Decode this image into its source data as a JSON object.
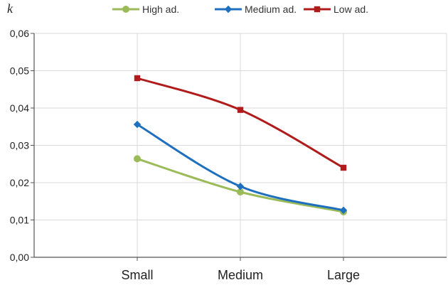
{
  "chart_data": {
    "type": "line",
    "title": "",
    "ylabel": "k",
    "xlabel": "",
    "categories": [
      "Small",
      "Medium",
      "Large"
    ],
    "ylim": [
      0,
      0.06
    ],
    "yticks": [
      "0,00",
      "0,01",
      "0,02",
      "0,03",
      "0,04",
      "0,05",
      "0,06"
    ],
    "grid": true,
    "legend_position": "top",
    "series": [
      {
        "name": "High ad.",
        "values": [
          0.0264,
          0.0175,
          0.0122
        ],
        "color": "#9bbb59",
        "marker": "circle"
      },
      {
        "name": "Medium ad.",
        "values": [
          0.0356,
          0.019,
          0.0126
        ],
        "color": "#1f6fbf",
        "marker": "diamond"
      },
      {
        "name": "Low ad.",
        "values": [
          0.048,
          0.0395,
          0.024
        ],
        "color": "#b01c1c",
        "marker": "square"
      }
    ]
  }
}
